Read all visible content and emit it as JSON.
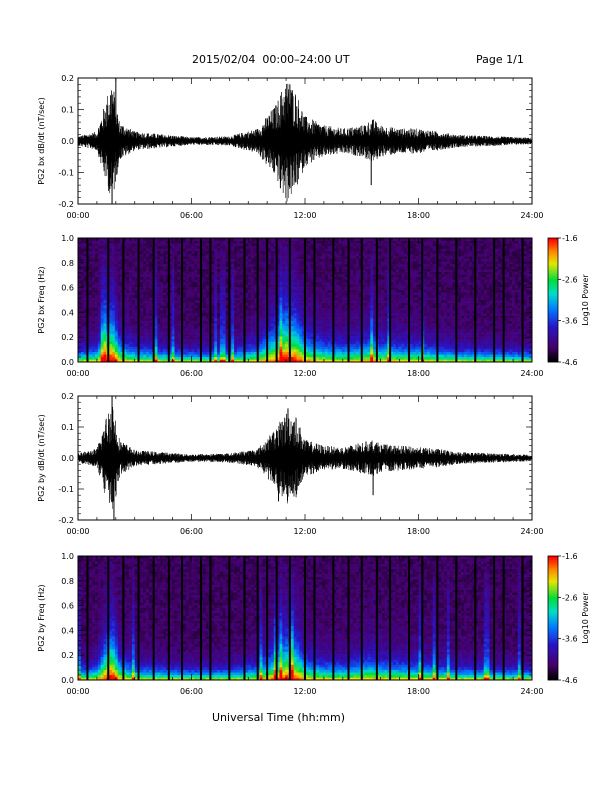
{
  "header": {
    "title": "2015/02/04  00:00–24:00 UT",
    "page": "Page 1/1"
  },
  "footer": {
    "xlabel": "Universal Time (hh:mm)"
  },
  "chart_data": [
    {
      "type": "line",
      "ylabel": "PG2 bx dB/dt (nT/sec)",
      "xlim": [
        0,
        24
      ],
      "ylim": [
        -0.2,
        0.2
      ],
      "xticks": [
        "00:00",
        "06:00",
        "12:00",
        "18:00",
        "24:00"
      ],
      "yticks": [
        "-0.2",
        "-0.1",
        "0.0",
        "0.1",
        "0.2"
      ],
      "envelope": {
        "x": [
          0,
          1,
          1.8,
          2.2,
          3,
          6,
          8,
          9.5,
          10.5,
          11,
          11.5,
          12,
          13,
          14,
          15,
          15.6,
          16,
          17,
          18,
          19,
          20,
          22,
          24
        ],
        "amplitude": [
          0.015,
          0.03,
          0.2,
          0.06,
          0.03,
          0.012,
          0.015,
          0.04,
          0.12,
          0.2,
          0.16,
          0.08,
          0.05,
          0.04,
          0.05,
          0.07,
          0.05,
          0.04,
          0.04,
          0.03,
          0.02,
          0.015,
          0.01
        ]
      },
      "spikes": [
        {
          "x": 1.8,
          "y": -0.2
        },
        {
          "x": 2.0,
          "y": 0.2
        },
        {
          "x": 10.7,
          "y": -0.15
        },
        {
          "x": 11.2,
          "y": 0.18
        },
        {
          "x": 15.5,
          "y": -0.14
        }
      ]
    },
    {
      "type": "heatmap",
      "ylabel": "PG2 bx Freq (Hz)",
      "xlim": [
        0,
        24
      ],
      "ylim": [
        0,
        1.0
      ],
      "xticks": [
        "00:00",
        "06:00",
        "12:00",
        "18:00",
        "24:00"
      ],
      "yticks": [
        "0.0",
        "0.2",
        "0.4",
        "0.6",
        "0.8",
        "1.0"
      ],
      "colorbar": {
        "label": "Log10 Power",
        "min": -4.6,
        "max": -1.6,
        "ticks": [
          "-1.6",
          "-2.6",
          "-3.6",
          "-4.6"
        ]
      },
      "gaps": [
        0.5,
        1.6,
        2.4,
        3.2,
        4.0,
        4.8,
        5.5,
        6.5,
        7.0,
        8.0,
        8.8,
        9.5,
        10.0,
        10.5,
        11.2,
        12.0,
        12.5,
        13.5,
        14.3,
        15.0,
        15.8,
        16.5,
        17.5,
        18.2,
        19.0,
        20.0,
        21.0,
        22.0,
        22.5,
        23.5
      ]
    },
    {
      "type": "line",
      "ylabel": "PG2 by dB/dt (nT/sec)",
      "xlim": [
        0,
        24
      ],
      "ylim": [
        -0.2,
        0.2
      ],
      "xticks": [
        "00:00",
        "06:00",
        "12:00",
        "18:00",
        "24:00"
      ],
      "yticks": [
        "-0.2",
        "-0.1",
        "0.0",
        "0.1",
        "0.2"
      ],
      "envelope": {
        "x": [
          0,
          1,
          1.8,
          2.2,
          3,
          6,
          8,
          9.5,
          10.5,
          11,
          11.5,
          12,
          13,
          14,
          15,
          15.6,
          16,
          17,
          18,
          19,
          20,
          22,
          24
        ],
        "amplitude": [
          0.015,
          0.03,
          0.2,
          0.06,
          0.025,
          0.012,
          0.015,
          0.03,
          0.1,
          0.15,
          0.14,
          0.06,
          0.04,
          0.035,
          0.05,
          0.06,
          0.045,
          0.04,
          0.035,
          0.03,
          0.02,
          0.015,
          0.01
        ]
      },
      "spikes": [
        {
          "x": 1.8,
          "y": 0.2
        },
        {
          "x": 1.9,
          "y": -0.2
        },
        {
          "x": 10.6,
          "y": -0.14
        },
        {
          "x": 11.1,
          "y": 0.16
        },
        {
          "x": 15.6,
          "y": -0.12
        }
      ]
    },
    {
      "type": "heatmap",
      "ylabel": "PG2 by Freq (Hz)",
      "xlim": [
        0,
        24
      ],
      "ylim": [
        0,
        1.0
      ],
      "xticks": [
        "00:00",
        "06:00",
        "12:00",
        "18:00",
        "24:00"
      ],
      "yticks": [
        "0.0",
        "0.2",
        "0.4",
        "0.6",
        "0.8",
        "1.0"
      ],
      "colorbar": {
        "label": "Log10 Power",
        "min": -4.6,
        "max": -1.6,
        "ticks": [
          "-1.6",
          "-2.6",
          "-3.6",
          "-4.6"
        ]
      },
      "gaps": [
        0.5,
        1.6,
        2.4,
        3.2,
        4.0,
        4.8,
        5.5,
        6.5,
        7.0,
        8.0,
        8.8,
        9.5,
        10.0,
        10.5,
        11.2,
        12.0,
        12.5,
        13.5,
        14.3,
        15.0,
        15.8,
        16.5,
        17.5,
        18.2,
        19.0,
        20.0,
        21.0,
        22.0,
        22.5,
        23.5
      ]
    }
  ]
}
